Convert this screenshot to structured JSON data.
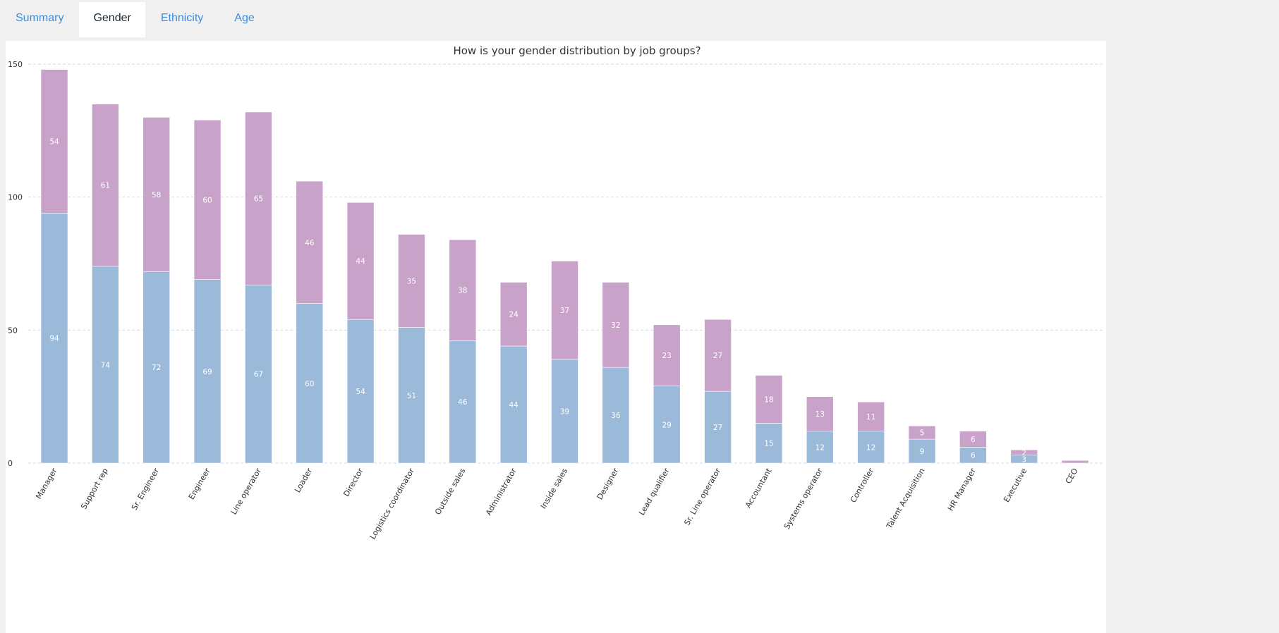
{
  "tabs": [
    {
      "label": "Summary",
      "active": false
    },
    {
      "label": "Gender",
      "active": true
    },
    {
      "label": "Ethnicity",
      "active": false
    },
    {
      "label": "Age",
      "active": false
    }
  ],
  "chart_data": {
    "type": "bar",
    "stacked": true,
    "title": "How is your gender distribution by job groups?",
    "xlabel": "",
    "ylabel": "",
    "ylim": [
      0,
      150
    ],
    "yticks": [
      0,
      50,
      100,
      150
    ],
    "grid": true,
    "categories": [
      "Manager",
      "Support rep",
      "Sr. Engineer",
      "Engineer",
      "Line operator",
      "Loader",
      "Director",
      "Logistics coordinator",
      "Outside sales",
      "Administrator",
      "Inside sales",
      "Designer",
      "Lead qualifier",
      "Sr. Line operator",
      "Accountant",
      "Systems operator",
      "Controller",
      "Talent Acquisition",
      "HR Manager",
      "Executive",
      "CEO"
    ],
    "series": [
      {
        "color": "#9bbad9",
        "values": [
          94,
          74,
          72,
          69,
          67,
          60,
          54,
          51,
          46,
          44,
          39,
          36,
          29,
          27,
          15,
          12,
          12,
          9,
          6,
          3,
          0
        ]
      },
      {
        "color": "#c9a2c9",
        "values": [
          54,
          61,
          58,
          60,
          65,
          46,
          44,
          35,
          38,
          24,
          37,
          32,
          23,
          27,
          18,
          13,
          11,
          5,
          6,
          2,
          1
        ]
      }
    ]
  }
}
